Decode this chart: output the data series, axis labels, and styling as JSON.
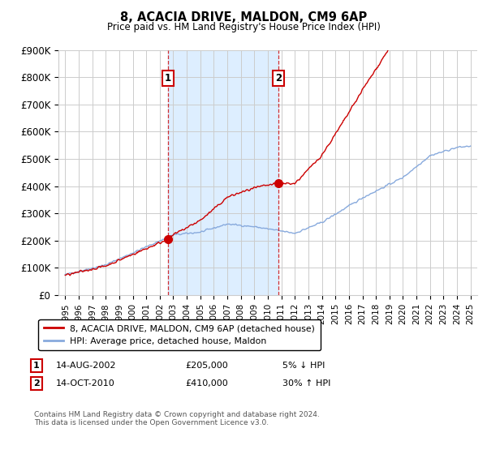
{
  "title": "8, ACACIA DRIVE, MALDON, CM9 6AP",
  "subtitle": "Price paid vs. HM Land Registry's House Price Index (HPI)",
  "ylim": [
    0,
    900000
  ],
  "yticks": [
    0,
    100000,
    200000,
    300000,
    400000,
    500000,
    600000,
    700000,
    800000,
    900000
  ],
  "ytick_labels": [
    "£0",
    "£100K",
    "£200K",
    "£300K",
    "£400K",
    "£500K",
    "£600K",
    "£700K",
    "£800K",
    "£900K"
  ],
  "xlim_start": 1994.5,
  "xlim_end": 2025.5,
  "transaction1": {
    "year": 2002.62,
    "price": 205000,
    "label": "1",
    "date": "14-AUG-2002",
    "price_str": "£205,000",
    "change": "5% ↓ HPI"
  },
  "transaction2": {
    "year": 2010.79,
    "price": 410000,
    "label": "2",
    "date": "14-OCT-2010",
    "price_str": "£410,000",
    "change": "30% ↑ HPI"
  },
  "line_color_red": "#cc0000",
  "line_color_blue": "#88aadd",
  "shade_color": "#ddeeff",
  "grid_color": "#cccccc",
  "background_color": "#ffffff",
  "legend_label_red": "8, ACACIA DRIVE, MALDON, CM9 6AP (detached house)",
  "legend_label_blue": "HPI: Average price, detached house, Maldon",
  "footnote": "Contains HM Land Registry data © Crown copyright and database right 2024.\nThis data is licensed under the Open Government Licence v3.0.",
  "xtick_years": [
    1995,
    1996,
    1997,
    1998,
    1999,
    2000,
    2001,
    2002,
    2003,
    2004,
    2005,
    2006,
    2007,
    2008,
    2009,
    2010,
    2011,
    2012,
    2013,
    2014,
    2015,
    2016,
    2017,
    2018,
    2019,
    2020,
    2021,
    2022,
    2023,
    2024,
    2025
  ]
}
